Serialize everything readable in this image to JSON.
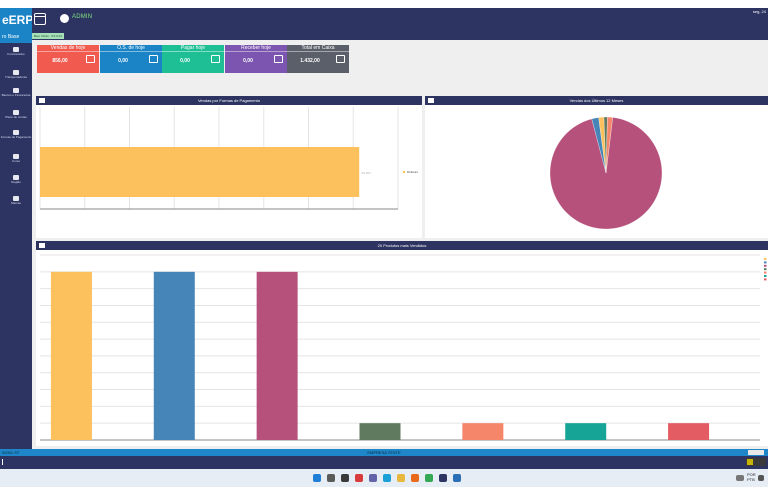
{
  "app": {
    "logo_text": "eERP",
    "user_name": "ADMIN",
    "date_text": "seg, 24",
    "sub_badge": "Bem Vindo : 3.5.0.04",
    "sidebar_title": "ro Base"
  },
  "sidebar": {
    "items": [
      {
        "label": "Funcionários",
        "icon": "users-icon"
      },
      {
        "label": "Transportadoras",
        "icon": "truck-icon"
      },
      {
        "label": "Bancos e Financeiras",
        "icon": "bank-icon"
      },
      {
        "label": "Plano de contas",
        "icon": "list-icon"
      },
      {
        "label": "Formas de Pagamento",
        "icon": "payment-icon"
      },
      {
        "label": "Cores",
        "icon": "palette-icon"
      },
      {
        "label": "Região",
        "icon": "map-icon"
      },
      {
        "label": "Marcas",
        "icon": "tag-icon"
      }
    ]
  },
  "cards": [
    {
      "title": "Vendas de hoje",
      "value": "856,00",
      "color": "#f05a4f",
      "icon": "cart-icon"
    },
    {
      "title": "O.S. de hoje",
      "value": "0,00",
      "color": "#1a84c7",
      "icon": "document-icon"
    },
    {
      "title": "Pagar hoje",
      "value": "0,00",
      "color": "#1ebf95",
      "icon": "money-out-icon"
    },
    {
      "title": "Receber hoje",
      "value": "0,00",
      "color": "#7b55b0",
      "icon": "money-in-icon"
    },
    {
      "title": "Total em Caixa",
      "value": "1.432,00",
      "color": "#5b5f6a",
      "icon": "register-icon"
    }
  ],
  "panels": {
    "payment_title": "Vendas por Formas de Pagamento",
    "monthly_title": "Vendas dos Últimos 12 Meses",
    "products_title": "20 Produtos mais Vendidos"
  },
  "chart_data": [
    {
      "type": "bar",
      "orientation": "horizontal",
      "categories": [
        "Dinheiro"
      ],
      "values": [
        856
      ],
      "data_labels": [
        "R$ 856"
      ],
      "legend": [
        "Dinheiro"
      ],
      "legend_position": "right",
      "colors": [
        "#fcc15d"
      ],
      "grid": true
    },
    {
      "type": "pie",
      "values": [
        94,
        2,
        1.5,
        1,
        1.5
      ],
      "colors": [
        "#b6517b",
        "#4585b8",
        "#fcc15d",
        "#5f7a5e",
        "#f5866a"
      ],
      "legend": []
    },
    {
      "type": "bar",
      "values": [
        100,
        100,
        100,
        10,
        10,
        10,
        10
      ],
      "colors": [
        "#fcc15d",
        "#4585b8",
        "#b6517b",
        "#5f7a5e",
        "#f5866a",
        "#16a497",
        "#e35c64"
      ],
      "legend_position": "right",
      "grid": true
    }
  ],
  "status": {
    "left": "00001 ST",
    "center": "EMPRESA TESTE"
  },
  "taskbar": {
    "lang": "POR",
    "lang2": "PTB"
  }
}
